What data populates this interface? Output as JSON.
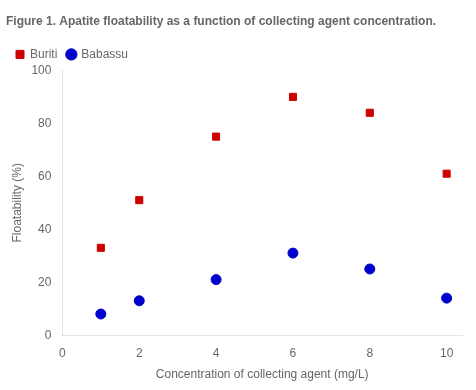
{
  "chart_data": {
    "type": "scatter",
    "title": "Figure 1. Apatite floatability as a function of collecting agent concentration.",
    "x_label": "Concentration of collecting agent (mg/L)",
    "y_label": "Floatability (%)",
    "x": [
      1,
      2,
      4,
      6,
      8,
      10
    ],
    "series": [
      {
        "name": "Buriti",
        "color": "#cc0000",
        "marker": "square",
        "values": [
          33,
          51,
          75,
          90,
          84,
          61
        ]
      },
      {
        "name": "Babassu",
        "color": "#0000cc",
        "marker": "circle",
        "values": [
          8,
          13,
          21,
          31,
          25,
          14
        ]
      }
    ],
    "xlim": [
      0,
      10.4
    ],
    "xticks": [
      0,
      2,
      4,
      6,
      8,
      10
    ],
    "ylim": [
      0,
      100
    ],
    "yticks": [
      0,
      20,
      40,
      60,
      80,
      100
    ],
    "grid": false,
    "legend": "upper left"
  }
}
